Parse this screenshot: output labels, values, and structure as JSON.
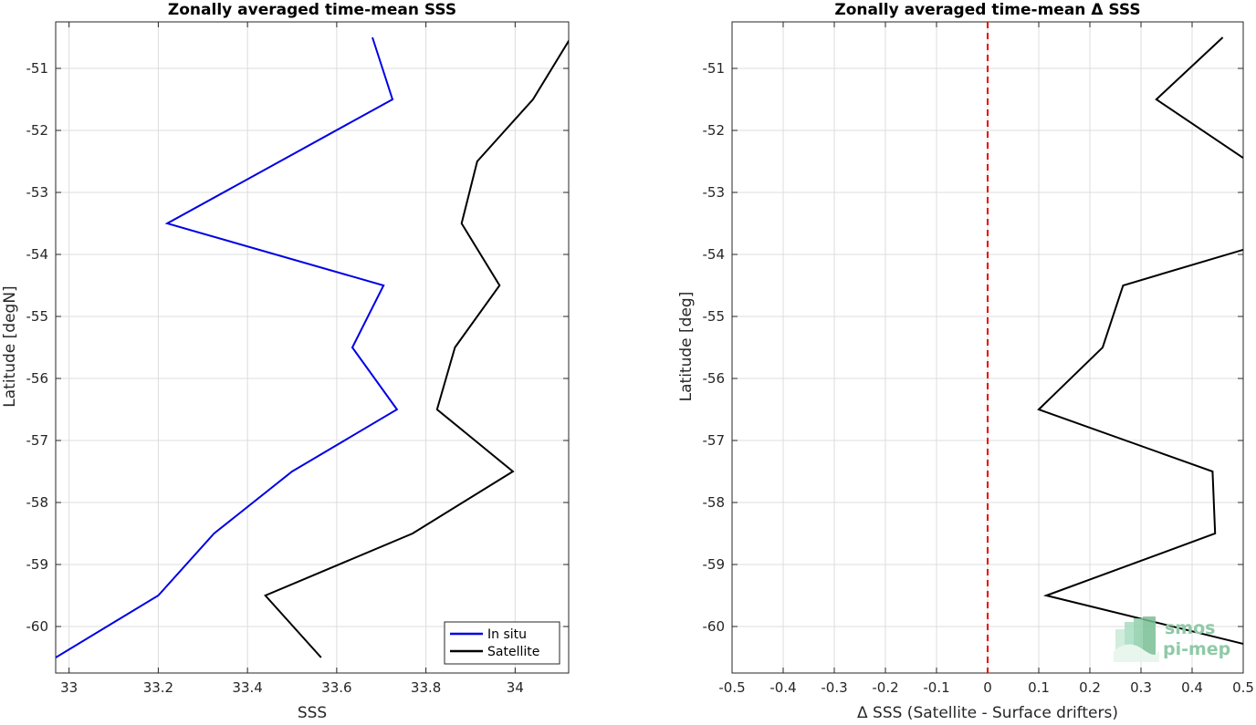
{
  "logo": {
    "line1": "smos",
    "line2": "pi-mep"
  },
  "chart_data": [
    {
      "type": "line",
      "title": "Zonally averaged time-mean SSS",
      "xlabel": "SSS",
      "ylabel": "Latitude [degN]",
      "xlim": [
        32.97,
        34.12
      ],
      "ylim": [
        -60.75,
        -50.25
      ],
      "xticks": [
        33,
        33.2,
        33.4,
        33.6,
        33.8,
        34
      ],
      "xtick_labels": [
        "33",
        "33.2",
        "33.4",
        "33.6",
        "33.8",
        "34"
      ],
      "yticks": [
        -51,
        -52,
        -53,
        -54,
        -55,
        -56,
        -57,
        -58,
        -59,
        -60
      ],
      "ytick_labels": [
        "-51",
        "-52",
        "-53",
        "-54",
        "-55",
        "-56",
        "-57",
        "-58",
        "-59",
        "-60"
      ],
      "grid": true,
      "legend_position": "bottom-right",
      "series": [
        {
          "name": "In situ",
          "color": "#0000e6",
          "x": [
            33.68,
            33.725,
            33.22,
            33.705,
            33.635,
            33.735,
            33.5,
            33.325,
            33.2,
            32.97
          ],
          "y": [
            -50.5,
            -51.5,
            -53.5,
            -54.5,
            -55.5,
            -56.5,
            -57.5,
            -58.5,
            -59.5,
            -60.5
          ]
        },
        {
          "name": "Satellite",
          "color": "#000000",
          "x": [
            34.125,
            34.04,
            33.915,
            33.88,
            33.965,
            33.865,
            33.825,
            33.995,
            33.77,
            33.44,
            33.565
          ],
          "y": [
            -50.5,
            -51.5,
            -52.5,
            -53.5,
            -54.5,
            -55.5,
            -56.5,
            -57.5,
            -58.5,
            -59.5,
            -60.5
          ]
        }
      ]
    },
    {
      "type": "line",
      "title": "Zonally averaged time-mean Δ SSS",
      "xlabel": "Δ SSS (Satellite - Surface drifters)",
      "ylabel": "Latitude [deg]",
      "xlim": [
        -0.5,
        0.5
      ],
      "ylim": [
        -60.75,
        -50.25
      ],
      "xticks": [
        -0.5,
        -0.4,
        -0.3,
        -0.2,
        -0.1,
        0,
        0.1,
        0.2,
        0.3,
        0.4,
        0.5
      ],
      "xtick_labels": [
        "-0.5",
        "-0.4",
        "-0.3",
        "-0.2",
        "-0.1",
        "0",
        "0.1",
        "0.2",
        "0.3",
        "0.4",
        "0.5"
      ],
      "yticks": [
        -51,
        -52,
        -53,
        -54,
        -55,
        -56,
        -57,
        -58,
        -59,
        -60
      ],
      "ytick_labels": [
        "-51",
        "-52",
        "-53",
        "-54",
        "-55",
        "-56",
        "-57",
        "-58",
        "-59",
        "-60"
      ],
      "grid": true,
      "reference_line": {
        "x": 0,
        "color": "#e60000",
        "style": "dashed"
      },
      "series": [
        {
          "color": "#000000",
          "x": [
            0.46,
            0.33,
            0.51,
            0.51,
            0.265,
            0.225,
            0.1,
            0.44,
            0.445,
            0.115,
            0.51
          ],
          "y": [
            -50.5,
            -51.5,
            -52.5,
            -53.9,
            -54.5,
            -55.5,
            -56.5,
            -57.5,
            -58.5,
            -59.5,
            -60.3
          ]
        }
      ]
    }
  ]
}
